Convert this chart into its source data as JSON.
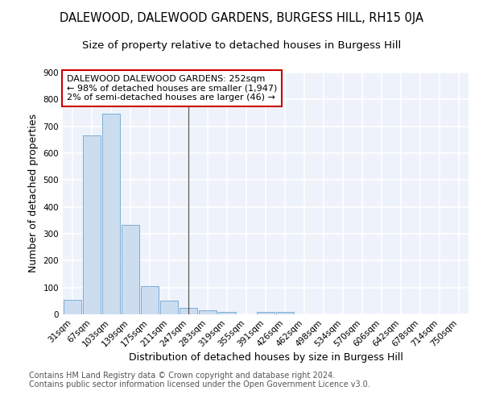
{
  "title": "DALEWOOD, DALEWOOD GARDENS, BURGESS HILL, RH15 0JA",
  "subtitle": "Size of property relative to detached houses in Burgess Hill",
  "xlabel": "Distribution of detached houses by size in Burgess Hill",
  "ylabel": "Number of detached properties",
  "footnote1": "Contains HM Land Registry data © Crown copyright and database right 2024.",
  "footnote2": "Contains public sector information licensed under the Open Government Licence v3.0.",
  "categories": [
    "31sqm",
    "67sqm",
    "103sqm",
    "139sqm",
    "175sqm",
    "211sqm",
    "247sqm",
    "283sqm",
    "319sqm",
    "355sqm",
    "391sqm",
    "426sqm",
    "462sqm",
    "498sqm",
    "534sqm",
    "570sqm",
    "606sqm",
    "642sqm",
    "678sqm",
    "714sqm",
    "750sqm"
  ],
  "values": [
    55,
    665,
    748,
    333,
    105,
    52,
    25,
    15,
    10,
    0,
    8,
    10,
    0,
    0,
    0,
    0,
    0,
    0,
    0,
    0,
    0
  ],
  "bar_color": "#ccddf0",
  "bar_edge_color": "#7aaed4",
  "vline_x": 6,
  "vline_color": "#555555",
  "annotation_text": "DALEWOOD DALEWOOD GARDENS: 252sqm\n← 98% of detached houses are smaller (1,947)\n2% of semi-detached houses are larger (46) →",
  "annotation_box_color": "white",
  "annotation_box_edge_color": "#cc0000",
  "ylim": [
    0,
    900
  ],
  "yticks": [
    0,
    100,
    200,
    300,
    400,
    500,
    600,
    700,
    800,
    900
  ],
  "bg_color": "#eef2fb",
  "grid_color": "#ffffff",
  "title_fontsize": 10.5,
  "subtitle_fontsize": 9.5,
  "axis_label_fontsize": 9,
  "tick_fontsize": 7.5,
  "annotation_fontsize": 8,
  "footnote_fontsize": 7
}
